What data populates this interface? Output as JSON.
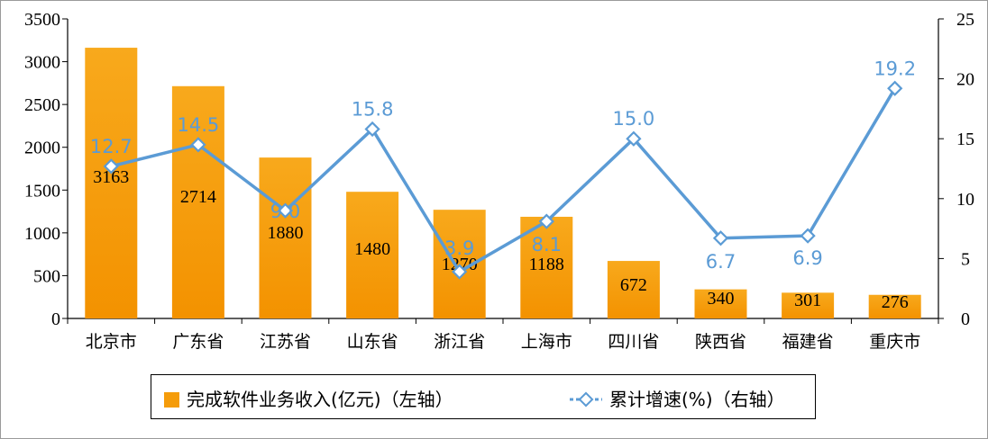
{
  "chart_data": {
    "type": "bar",
    "categories": [
      "北京市",
      "广东省",
      "江苏省",
      "山东省",
      "浙江省",
      "上海市",
      "四川省",
      "陕西省",
      "福建省",
      "重庆市"
    ],
    "series": [
      {
        "name": "完成软件业务收入(亿元)（左轴）",
        "type": "bar",
        "axis": "left",
        "values": [
          3163,
          2714,
          1880,
          1480,
          1270,
          1188,
          672,
          340,
          301,
          276
        ],
        "color": "#f59c0a"
      },
      {
        "name": "累计增速(%)（右轴）",
        "type": "line",
        "axis": "right",
        "values": [
          12.7,
          14.5,
          9.0,
          15.8,
          3.9,
          8.1,
          15.0,
          6.7,
          6.9,
          19.2
        ],
        "color": "#5b9bd5"
      }
    ],
    "y_left": {
      "ylim": [
        0,
        3500
      ],
      "ticks": [
        0,
        500,
        1000,
        1500,
        2000,
        2500,
        3000,
        3500
      ]
    },
    "y_right": {
      "ylim": [
        0,
        25
      ],
      "ticks": [
        0,
        5,
        10,
        15,
        20,
        25
      ]
    },
    "grid": false,
    "legend_position": "bottom"
  }
}
